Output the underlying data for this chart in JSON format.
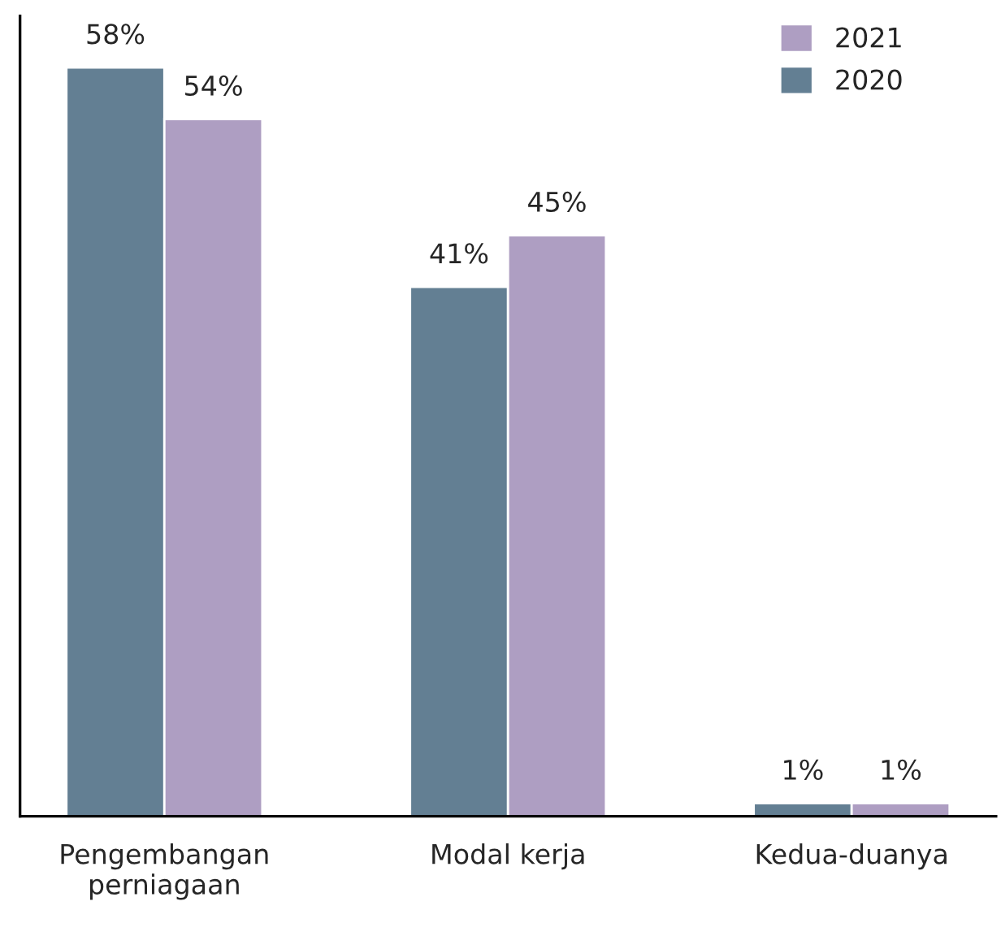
{
  "chart_data": {
    "type": "bar",
    "categories": [
      "Pengembangan\nperniagaan",
      "Modal kerja",
      "Kedua-duanya"
    ],
    "series": [
      {
        "name": "2020",
        "color": "#637f93",
        "values": [
          58,
          41,
          1
        ],
        "value_labels": [
          "58%",
          "41%",
          "1%"
        ]
      },
      {
        "name": "2021",
        "color": "#ae9ec2",
        "values": [
          54,
          45,
          1
        ],
        "value_labels": [
          "54%",
          "45%",
          "1%"
        ]
      }
    ],
    "ylim": [
      0,
      62
    ],
    "tick_labels": "x",
    "legend": "top right",
    "grid": false
  }
}
